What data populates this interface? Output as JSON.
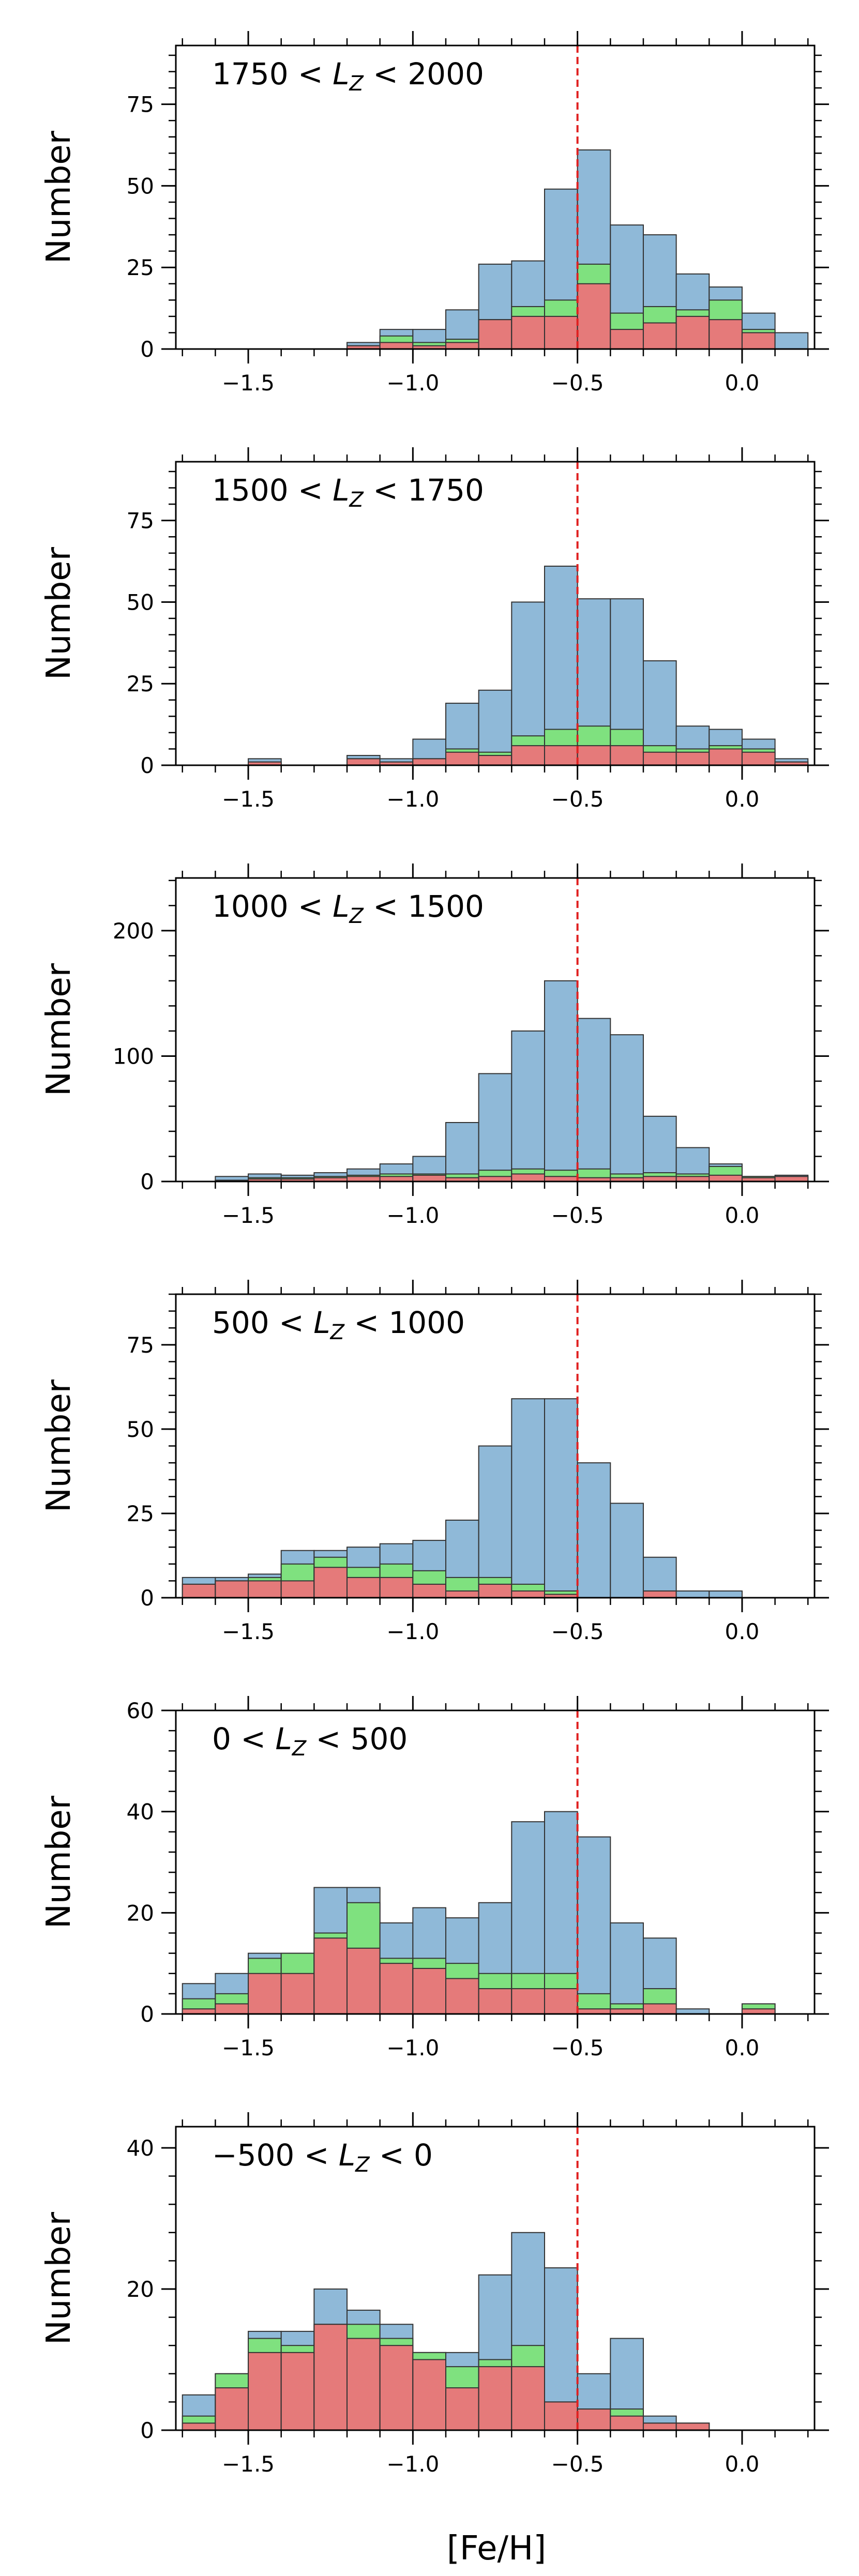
{
  "figure": {
    "xlabel": "[Fe/H]",
    "ylabel": "Number",
    "xlim": [
      -1.72,
      0.22
    ],
    "bin_edges": [
      -1.7,
      -1.6,
      -1.5,
      -1.4,
      -1.3,
      -1.2,
      -1.1,
      -1.0,
      -0.9,
      -0.8,
      -0.7,
      -0.6,
      -0.5,
      -0.4,
      -0.3,
      -0.2,
      -0.1,
      0.0,
      0.1,
      0.2
    ],
    "x_tick_labels": [
      "−1.5",
      "−1.0",
      "−0.5",
      "0.0"
    ],
    "x_tick_values": [
      -1.5,
      -1.0,
      -0.5,
      0.0
    ],
    "reference_line_x": -0.5,
    "colors": {
      "bottom": "#e57a7a",
      "middle": "#7fe17f",
      "top": "#8fb9d8",
      "edge": "#333333",
      "reference_line": "#e02020",
      "axis": "#000000"
    }
  },
  "chart_data": [
    {
      "type": "bar",
      "title": "1750 < L_Z < 2000",
      "label_parts": [
        "1750 < ",
        "L",
        "Z",
        " < 2000"
      ],
      "ylim": [
        0,
        93
      ],
      "yticks": [
        0,
        25,
        50,
        75
      ],
      "ytick_labels": [
        "0",
        "25",
        "50",
        "75"
      ],
      "y_minor": 5,
      "series": [
        {
          "name": "bottom",
          "values": [
            0,
            0,
            0,
            0,
            0,
            1,
            2,
            1,
            2,
            9,
            10,
            10,
            20,
            6,
            8,
            10,
            9,
            5,
            0
          ]
        },
        {
          "name": "middle",
          "values": [
            0,
            0,
            0,
            0,
            0,
            0,
            2,
            1,
            1,
            0,
            3,
            5,
            6,
            5,
            5,
            2,
            6,
            1,
            0
          ]
        },
        {
          "name": "total",
          "values": [
            0,
            0,
            0,
            0,
            0,
            2,
            6,
            6,
            12,
            26,
            27,
            49,
            61,
            38,
            35,
            23,
            19,
            11,
            5
          ]
        }
      ]
    },
    {
      "type": "bar",
      "title": "1500 < L_Z < 1750",
      "label_parts": [
        "1500 < ",
        "L",
        "Z",
        " < 1750"
      ],
      "ylim": [
        0,
        93
      ],
      "yticks": [
        0,
        25,
        50,
        75
      ],
      "ytick_labels": [
        "0",
        "25",
        "50",
        "75"
      ],
      "y_minor": 5,
      "series": [
        {
          "name": "bottom",
          "values": [
            0,
            0,
            1,
            0,
            0,
            2,
            1,
            2,
            4,
            3,
            6,
            6,
            6,
            6,
            4,
            4,
            5,
            4,
            1
          ]
        },
        {
          "name": "middle",
          "values": [
            0,
            0,
            0,
            0,
            0,
            0,
            0,
            0,
            1,
            1,
            3,
            5,
            6,
            5,
            2,
            1,
            1,
            1,
            0
          ]
        },
        {
          "name": "total",
          "values": [
            0,
            0,
            2,
            0,
            0,
            3,
            2,
            8,
            19,
            23,
            50,
            61,
            51,
            51,
            32,
            12,
            11,
            8,
            2
          ]
        }
      ]
    },
    {
      "type": "bar",
      "title": "1000 < L_Z < 1500",
      "label_parts": [
        "1000 < ",
        "L",
        "Z",
        " < 1500"
      ],
      "ylim": [
        0,
        242
      ],
      "yticks": [
        0,
        100,
        200
      ],
      "ytick_labels": [
        "0",
        "100",
        "200"
      ],
      "y_minor": 20,
      "series": [
        {
          "name": "bottom",
          "values": [
            0,
            1,
            2,
            2,
            3,
            4,
            4,
            5,
            3,
            4,
            6,
            4,
            3,
            3,
            4,
            4,
            5,
            3,
            4
          ]
        },
        {
          "name": "middle",
          "values": [
            0,
            0,
            1,
            1,
            1,
            1,
            2,
            1,
            3,
            5,
            4,
            5,
            7,
            3,
            3,
            2,
            7,
            1,
            0
          ]
        },
        {
          "name": "total",
          "values": [
            0,
            4,
            6,
            5,
            7,
            10,
            14,
            20,
            47,
            86,
            120,
            160,
            130,
            117,
            52,
            27,
            14,
            4,
            5
          ]
        }
      ]
    },
    {
      "type": "bar",
      "title": "500 < L_Z < 1000",
      "label_parts": [
        "500 < ",
        "L",
        "Z",
        " < 1000"
      ],
      "ylim": [
        0,
        90
      ],
      "yticks": [
        0,
        25,
        50,
        75
      ],
      "ytick_labels": [
        "0",
        "25",
        "50",
        "75"
      ],
      "y_minor": 5,
      "series": [
        {
          "name": "bottom",
          "values": [
            4,
            5,
            5,
            5,
            9,
            6,
            6,
            4,
            2,
            4,
            2,
            1,
            0,
            0,
            2,
            0,
            0,
            0,
            0
          ]
        },
        {
          "name": "middle",
          "values": [
            0,
            0,
            1,
            5,
            3,
            3,
            4,
            4,
            4,
            2,
            2,
            1,
            0,
            0,
            0,
            0,
            0,
            0,
            0
          ]
        },
        {
          "name": "total",
          "values": [
            6,
            6,
            7,
            14,
            14,
            15,
            16,
            17,
            23,
            45,
            59,
            59,
            40,
            28,
            12,
            2,
            2,
            0,
            0
          ]
        }
      ]
    },
    {
      "type": "bar",
      "title": "0 < L_Z < 500",
      "label_parts": [
        "0 < ",
        "L",
        "Z",
        " < 500"
      ],
      "ylim": [
        0,
        60
      ],
      "yticks": [
        0,
        20,
        40,
        60
      ],
      "ytick_labels": [
        "0",
        "20",
        "40",
        "60"
      ],
      "y_minor": 4,
      "series": [
        {
          "name": "bottom",
          "values": [
            1,
            2,
            8,
            8,
            15,
            13,
            10,
            9,
            7,
            5,
            5,
            5,
            1,
            1,
            2,
            0,
            0,
            1,
            0
          ]
        },
        {
          "name": "middle",
          "values": [
            2,
            2,
            3,
            4,
            1,
            9,
            1,
            2,
            3,
            3,
            3,
            3,
            3,
            1,
            3,
            0,
            0,
            1,
            0
          ]
        },
        {
          "name": "total",
          "values": [
            6,
            8,
            12,
            12,
            25,
            25,
            18,
            21,
            19,
            22,
            38,
            40,
            35,
            18,
            15,
            1,
            0,
            2,
            0
          ]
        }
      ]
    },
    {
      "type": "bar",
      "title": "−500 < L_Z < 0",
      "label_parts": [
        "−500 < ",
        "L",
        "Z",
        " < 0"
      ],
      "ylim": [
        0,
        43
      ],
      "yticks": [
        0,
        20,
        40
      ],
      "ytick_labels": [
        "0",
        "20",
        "40"
      ],
      "y_minor": 4,
      "series": [
        {
          "name": "bottom",
          "values": [
            1,
            6,
            11,
            11,
            15,
            13,
            12,
            10,
            6,
            9,
            9,
            4,
            3,
            2,
            1,
            1,
            0,
            0,
            0
          ]
        },
        {
          "name": "middle",
          "values": [
            1,
            2,
            2,
            1,
            0,
            2,
            1,
            1,
            3,
            1,
            3,
            0,
            0,
            1,
            0,
            0,
            0,
            0,
            0
          ]
        },
        {
          "name": "total",
          "values": [
            5,
            8,
            14,
            14,
            20,
            17,
            15,
            11,
            11,
            22,
            28,
            23,
            8,
            13,
            2,
            1,
            0,
            0,
            0
          ]
        }
      ]
    }
  ]
}
